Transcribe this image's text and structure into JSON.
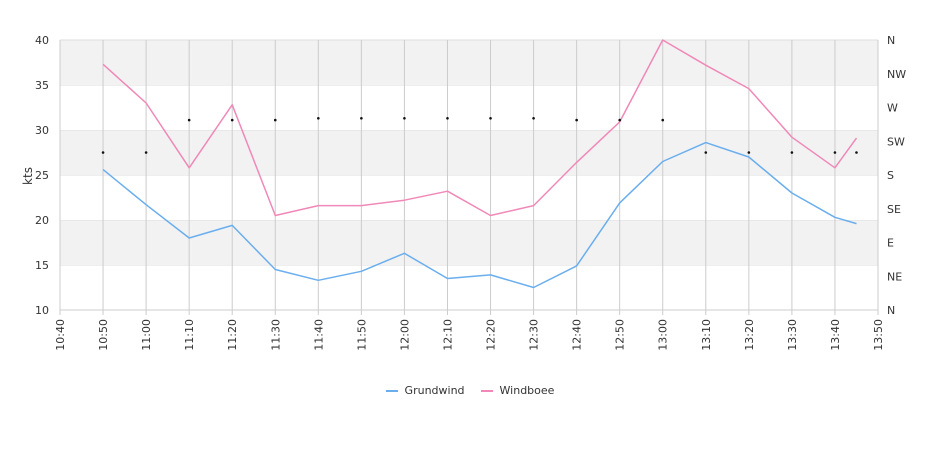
{
  "chart_data": {
    "type": "line",
    "x_ticks": [
      "10:40",
      "10:50",
      "11:00",
      "11:10",
      "11:20",
      "11:30",
      "11:40",
      "11:50",
      "12:00",
      "12:10",
      "12:20",
      "12:30",
      "12:40",
      "12:50",
      "13:00",
      "13:10",
      "13:20",
      "13:30",
      "13:40",
      "13:50"
    ],
    "x_range": [
      "10:40",
      "13:50"
    ],
    "ylabel": "kts",
    "ylim": [
      10,
      40
    ],
    "y_ticks": [
      10,
      15,
      20,
      25,
      30,
      35,
      40
    ],
    "y2_ticks": [
      "N",
      "NE",
      "E",
      "SE",
      "S",
      "SW",
      "W",
      "NW",
      "N"
    ],
    "grid": "horizontal bands and vertical lines",
    "legend_position": "bottom",
    "series": [
      {
        "name": "Grundwind",
        "color": "#6aaeee",
        "x": [
          "10:50",
          "11:00",
          "11:10",
          "11:20",
          "11:30",
          "11:40",
          "11:50",
          "12:00",
          "12:10",
          "12:20",
          "12:30",
          "12:40",
          "12:50",
          "13:00",
          "13:10",
          "13:20",
          "13:30",
          "13:40",
          "13:45"
        ],
        "values": [
          25.6,
          21.7,
          18.0,
          19.4,
          14.5,
          13.3,
          14.3,
          16.3,
          13.5,
          13.9,
          12.5,
          14.9,
          21.9,
          26.5,
          28.6,
          27.0,
          23.0,
          20.3,
          19.6
        ]
      },
      {
        "name": "Windboee",
        "color": "#f088b8",
        "x": [
          "10:50",
          "11:00",
          "11:10",
          "11:20",
          "11:30",
          "11:40",
          "11:50",
          "12:00",
          "12:10",
          "12:20",
          "12:30",
          "12:40",
          "12:50",
          "13:00",
          "13:10",
          "13:20",
          "13:30",
          "13:40",
          "13:45"
        ],
        "values": [
          37.3,
          33.0,
          25.8,
          32.8,
          20.5,
          21.6,
          21.6,
          22.2,
          23.2,
          20.5,
          21.6,
          26.4,
          30.9,
          40.0,
          37.2,
          34.6,
          29.2,
          25.8,
          29.1
        ]
      }
    ],
    "direction_points": {
      "x": [
        "10:50",
        "11:00",
        "11:10",
        "11:20",
        "11:30",
        "11:40",
        "11:50",
        "12:00",
        "12:10",
        "12:20",
        "12:30",
        "12:40",
        "12:50",
        "13:00",
        "13:10",
        "13:20",
        "13:30",
        "13:40",
        "13:45"
      ],
      "values": [
        27.5,
        27.5,
        31.1,
        31.1,
        31.1,
        31.3,
        31.3,
        31.3,
        31.3,
        31.3,
        31.3,
        31.1,
        31.1,
        31.1,
        27.5,
        27.5,
        27.5,
        27.5,
        27.5
      ]
    }
  }
}
